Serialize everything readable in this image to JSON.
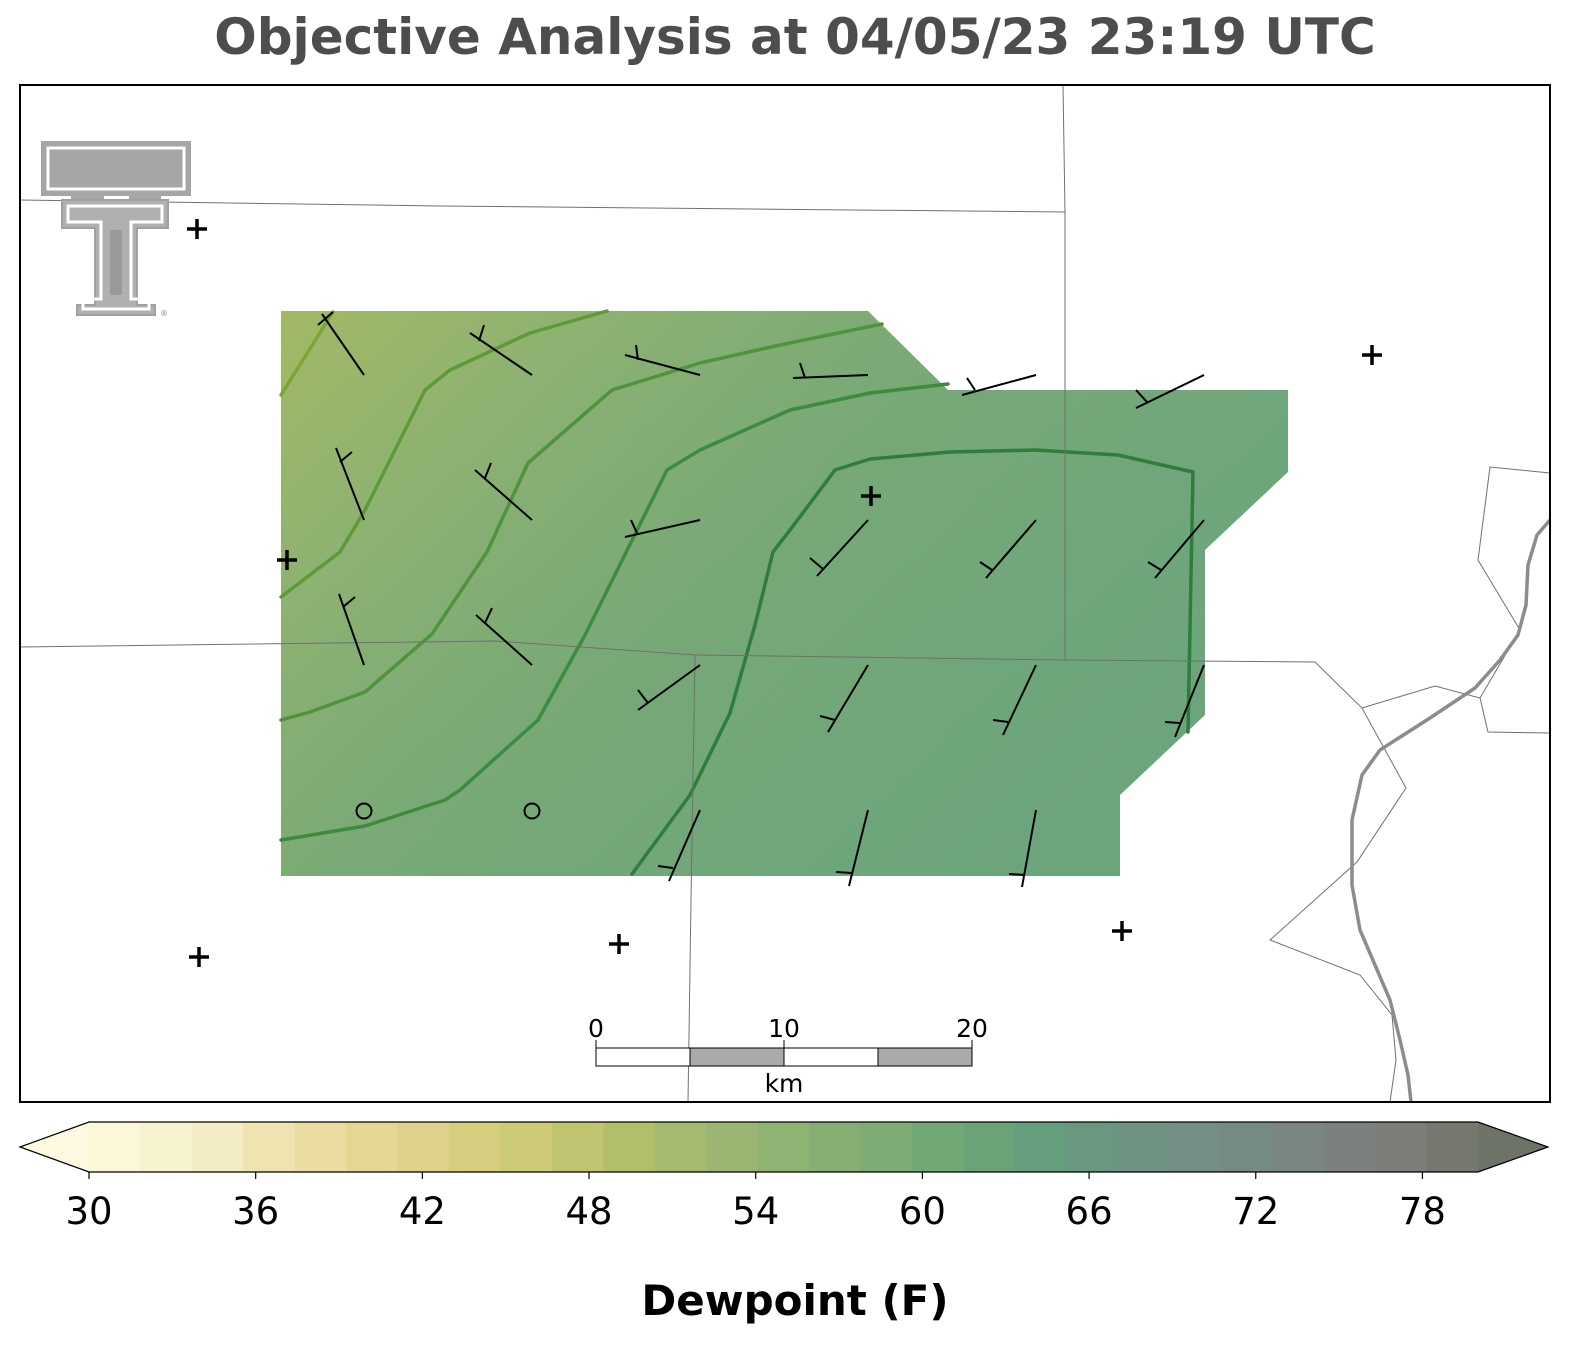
{
  "title": "Objective Analysis at 04/05/23 23:19 UTC",
  "colorbar": {
    "label": "Dewpoint (F)",
    "ticks": [
      "30",
      "36",
      "42",
      "48",
      "54",
      "60",
      "66",
      "72",
      "78"
    ],
    "min": 30,
    "max": 80,
    "extend": "both",
    "colors": [
      "#fbf7d9",
      "#f8f3cf",
      "#f4ecc2",
      "#efe4b1",
      "#ebdca2",
      "#e6d694",
      "#ded189",
      "#d6cd7e",
      "#cdcb77",
      "#c1c571",
      "#b3be6a",
      "#a6ba6e",
      "#9ab672",
      "#8fb373",
      "#86ae72",
      "#7cac74",
      "#72a875",
      "#6aa377",
      "#649e7c",
      "#699881",
      "#6f9383",
      "#748e85",
      "#768a84",
      "#7a8681",
      "#7b827e",
      "#7b7e79",
      "#76786f"
    ],
    "under_color": "#fdf9e0",
    "over_color": "#6e7368"
  },
  "scale_bar": {
    "labels": [
      "0",
      "10",
      "20"
    ],
    "unit": "km"
  },
  "logo": "texas-tech-double-t-logo",
  "stations_missing_symbol": "+",
  "stations_calm_symbol": "o"
}
